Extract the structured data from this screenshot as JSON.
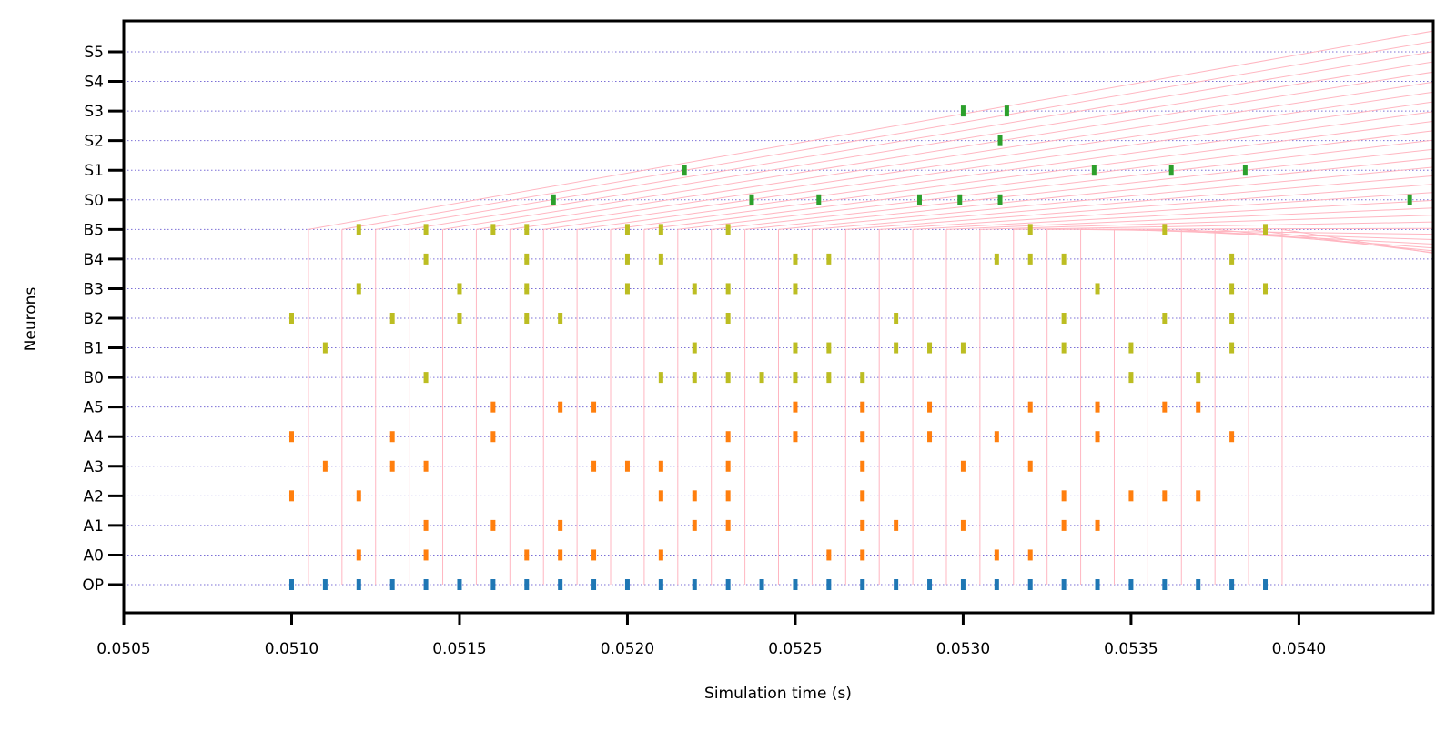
{
  "chart_data": {
    "type": "scatter",
    "title": "",
    "xlabel": "Simulation time (s)",
    "ylabel": "Neurons",
    "xlim": [
      0.0505,
      0.0544
    ],
    "x_ticks": [
      0.0505,
      0.051,
      0.0515,
      0.052,
      0.0525,
      0.053,
      0.0535,
      0.054
    ],
    "x_tick_labels": [
      "0.0505",
      "0.0510",
      "0.0515",
      "0.0520",
      "0.0525",
      "0.0530",
      "0.0535",
      "0.0540"
    ],
    "y_categories": [
      "OP",
      "A0",
      "A1",
      "A2",
      "A3",
      "A4",
      "A5",
      "B0",
      "B1",
      "B2",
      "B3",
      "B4",
      "B5",
      "S0",
      "S1",
      "S2",
      "S3",
      "S4",
      "S5"
    ],
    "grid": "horizontal dotted",
    "legend": "none",
    "colors": {
      "OP": "#1f77b4",
      "A": "#ff7f0e",
      "B": "#bcbd22",
      "S": "#2ca02c",
      "connection": "#ffb6c1",
      "grid": "#7b6fd6"
    },
    "series": [
      {
        "neuron": "OP",
        "spike_times": [
          0.051,
          0.0511,
          0.0512,
          0.0513,
          0.0514,
          0.0515,
          0.0516,
          0.0517,
          0.0518,
          0.0519,
          0.052,
          0.0521,
          0.0522,
          0.0523,
          0.0524,
          0.0525,
          0.0526,
          0.0527,
          0.0528,
          0.0529,
          0.053,
          0.0531,
          0.0532,
          0.0533,
          0.0534,
          0.0535,
          0.0536,
          0.0537,
          0.0538,
          0.0539
        ]
      },
      {
        "neuron": "A0",
        "spike_times": [
          0.0512,
          0.0514,
          0.0517,
          0.0518,
          0.0519,
          0.0521,
          0.0526,
          0.0527,
          0.0531,
          0.0532
        ]
      },
      {
        "neuron": "A1",
        "spike_times": [
          0.0514,
          0.0516,
          0.0518,
          0.0522,
          0.0523,
          0.0527,
          0.0528,
          0.053,
          0.0533,
          0.0534
        ]
      },
      {
        "neuron": "A2",
        "spike_times": [
          0.051,
          0.0512,
          0.0521,
          0.0522,
          0.0523,
          0.0527,
          0.0533,
          0.0535,
          0.0536,
          0.0537
        ]
      },
      {
        "neuron": "A3",
        "spike_times": [
          0.0511,
          0.0513,
          0.0514,
          0.0519,
          0.052,
          0.0521,
          0.0523,
          0.0527,
          0.053,
          0.0532
        ]
      },
      {
        "neuron": "A4",
        "spike_times": [
          0.051,
          0.0513,
          0.0516,
          0.0523,
          0.0525,
          0.0527,
          0.0529,
          0.0531,
          0.0534,
          0.0538
        ]
      },
      {
        "neuron": "A5",
        "spike_times": [
          0.0516,
          0.0518,
          0.0519,
          0.0525,
          0.0527,
          0.0529,
          0.0532,
          0.0534,
          0.0536,
          0.0537
        ]
      },
      {
        "neuron": "B0",
        "spike_times": [
          0.0514,
          0.0521,
          0.0522,
          0.0523,
          0.0524,
          0.0525,
          0.0526,
          0.0527,
          0.0535,
          0.0537
        ]
      },
      {
        "neuron": "B1",
        "spike_times": [
          0.0511,
          0.0522,
          0.0525,
          0.0526,
          0.0528,
          0.0529,
          0.053,
          0.0533,
          0.0535,
          0.0538
        ]
      },
      {
        "neuron": "B2",
        "spike_times": [
          0.051,
          0.0513,
          0.0515,
          0.0517,
          0.0518,
          0.0523,
          0.0528,
          0.0533,
          0.0536,
          0.0538
        ]
      },
      {
        "neuron": "B3",
        "spike_times": [
          0.0512,
          0.0515,
          0.0517,
          0.052,
          0.0522,
          0.0523,
          0.0525,
          0.0534,
          0.0538,
          0.0539
        ]
      },
      {
        "neuron": "B4",
        "spike_times": [
          0.0514,
          0.0517,
          0.052,
          0.0521,
          0.0525,
          0.0526,
          0.0531,
          0.0532,
          0.0533,
          0.0538
        ]
      },
      {
        "neuron": "B5",
        "spike_times": [
          0.0512,
          0.0514,
          0.0516,
          0.0517,
          0.052,
          0.0521,
          0.0523,
          0.0532,
          0.0536,
          0.0539
        ]
      },
      {
        "neuron": "S0",
        "spike_times": [
          0.05178,
          0.05237,
          0.05257,
          0.05287,
          0.05299,
          0.05311,
          0.05433
        ]
      },
      {
        "neuron": "S1",
        "spike_times": [
          0.05217,
          0.05339,
          0.05362,
          0.05384
        ]
      },
      {
        "neuron": "S2",
        "spike_times": [
          0.05311
        ]
      },
      {
        "neuron": "S3",
        "spike_times": [
          0.053,
          0.05313
        ]
      },
      {
        "neuron": "S4",
        "spike_times": []
      },
      {
        "neuron": "S5",
        "spike_times": []
      }
    ],
    "connections": {
      "vertical_lines": {
        "x": [
          0.05105,
          0.05115,
          0.05125,
          0.05135,
          0.05145,
          0.05155,
          0.05165,
          0.05175,
          0.05185,
          0.05195,
          0.05205,
          0.05215,
          0.05225,
          0.05235,
          0.05245,
          0.05255,
          0.05265,
          0.05275,
          0.05285,
          0.05295,
          0.05305,
          0.05315,
          0.05325,
          0.05335,
          0.05345,
          0.05355,
          0.05365,
          0.05375,
          0.05385,
          0.05395
        ],
        "from": "OP",
        "to": "B5"
      },
      "fan_lines": {
        "from": "B5",
        "to": "S5"
      }
    }
  }
}
